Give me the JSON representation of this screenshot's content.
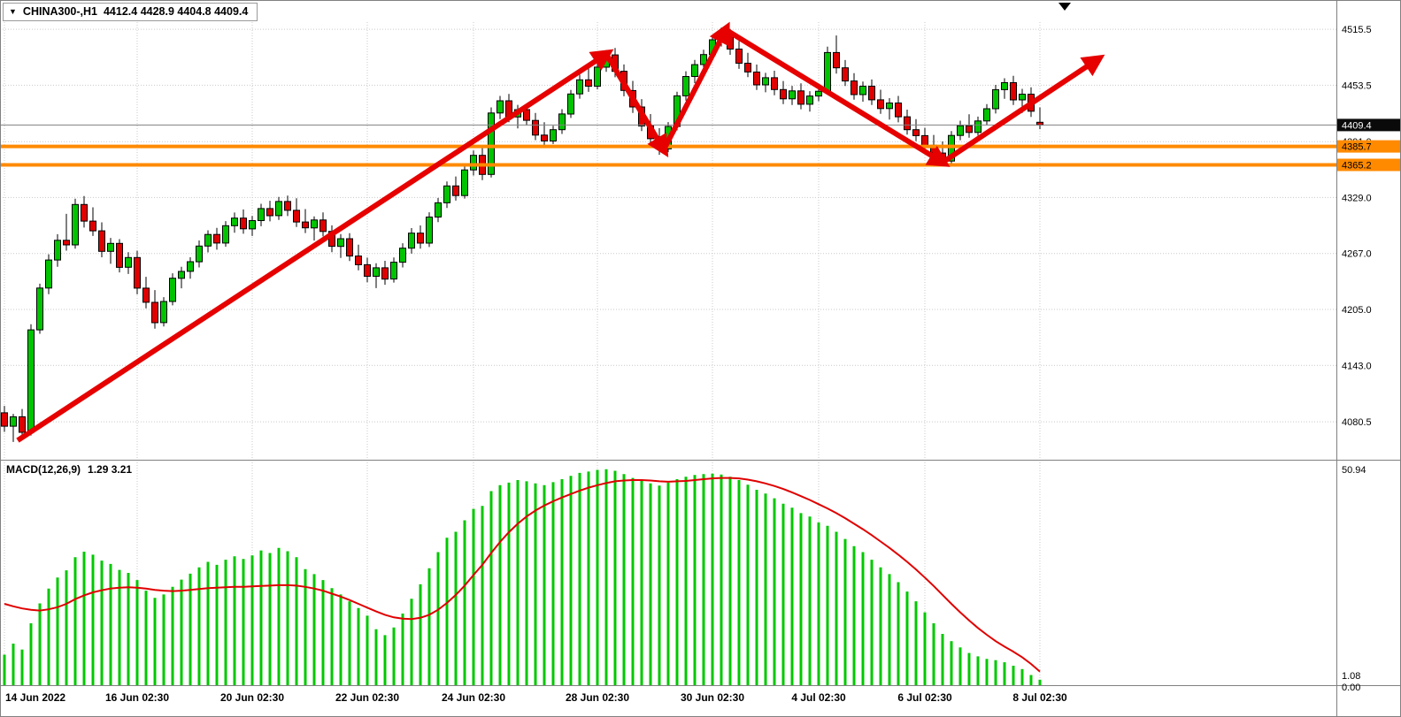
{
  "header": {
    "dropdown_icon": "▼",
    "symbol": "CHINA300-,H1",
    "ohlc": "4412.4 4428.9 4404.8 4409.4"
  },
  "macd": {
    "label": "MACD(12,26,9)",
    "values_text": "1.29 3.21"
  },
  "colors": {
    "background": "#ffffff",
    "grid": "#c9c9c9",
    "up": "#00c400",
    "down": "#e00000",
    "candle_border": "#000000",
    "wick": "#000000",
    "histogram": "#00c800",
    "signal_line": "#e00000",
    "support_line": "#ff8a00",
    "trend_arrow": "#e60000",
    "current_price_line": "#808080",
    "current_price_badge_bg": "#0a0a0a",
    "current_price_badge_fg": "#ffffff",
    "separator": "#808080"
  },
  "chart_data": [
    {
      "type": "candlestick",
      "title": "CHINA300-,H1",
      "timeframe": "H1",
      "ylim": [
        4038.5,
        4523.4
      ],
      "y_ticks": [
        4515.5,
        4453.5,
        4391.0,
        4329.0,
        4267.0,
        4205.0,
        4143.0,
        4080.5
      ],
      "x_tick_indices": [
        0,
        15,
        28,
        41,
        53,
        67,
        80,
        92,
        104,
        117
      ],
      "x_tick_labels": [
        "14 Jun 2022",
        "16 Jun 02:30",
        "20 Jun 02:30",
        "22 Jun 02:30",
        "24 Jun 02:30",
        "28 Jun 02:30",
        "30 Jun 02:30",
        "4 Jul 02:30",
        "6 Jul 02:30",
        "8 Jul 02:30"
      ],
      "current_price": 4409.4,
      "support_lines": [
        4385.7,
        4365.2
      ],
      "trend_arrows": [
        {
          "from": [
            1.5,
            4060.0
          ],
          "to": [
            68,
            4488.0
          ]
        },
        {
          "from": [
            68,
            4488.0
          ],
          "to": [
            74.5,
            4382.0
          ]
        },
        {
          "from": [
            74.5,
            4382.0
          ],
          "to": [
            81.5,
            4515.0
          ]
        },
        {
          "from": [
            81.5,
            4515.0
          ],
          "to": [
            106,
            4368.0
          ]
        },
        {
          "from": [
            106,
            4368.0
          ],
          "to": [
            123.5,
            4482.0
          ]
        }
      ],
      "ohlc": [
        [
          4090.5,
          4098.2,
          4069.4,
          4075.6
        ],
        [
          4075.6,
          4089.3,
          4058.2,
          4086.1
        ],
        [
          4086.1,
          4094.7,
          4061.5,
          4068.9
        ],
        [
          4068.9,
          4188.6,
          4065.3,
          4182.4
        ],
        [
          4182.4,
          4233.5,
          4178.1,
          4228.7
        ],
        [
          4228.7,
          4266.2,
          4221.9,
          4259.8
        ],
        [
          4259.8,
          4288.4,
          4252.3,
          4281.6
        ],
        [
          4281.6,
          4310.9,
          4270.2,
          4276.5
        ],
        [
          4276.5,
          4327.8,
          4272.4,
          4321.3
        ],
        [
          4321.3,
          4330.6,
          4295.7,
          4302.9
        ],
        [
          4302.9,
          4318.2,
          4286.4,
          4292.1
        ],
        [
          4292.1,
          4301.5,
          4262.8,
          4269.4
        ],
        [
          4269.4,
          4284.3,
          4255.6,
          4278.2
        ],
        [
          4278.2,
          4282.9,
          4246.1,
          4251.7
        ],
        [
          4251.7,
          4268.4,
          4244.3,
          4262.5
        ],
        [
          4262.5,
          4270.1,
          4221.8,
          4228.6
        ],
        [
          4228.6,
          4241.2,
          4206.3,
          4212.9
        ],
        [
          4212.9,
          4226.5,
          4183.7,
          4190.4
        ],
        [
          4190.4,
          4218.6,
          4186.2,
          4213.8
        ],
        [
          4213.8,
          4245.1,
          4209.5,
          4239.6
        ],
        [
          4239.6,
          4252.3,
          4228.4,
          4247.2
        ],
        [
          4247.2,
          4262.8,
          4239.1,
          4257.9
        ],
        [
          4257.9,
          4281.4,
          4251.6,
          4275.3
        ],
        [
          4275.3,
          4292.7,
          4268.2,
          4288.1
        ],
        [
          4288.1,
          4295.4,
          4271.3,
          4278.6
        ],
        [
          4278.6,
          4302.9,
          4274.5,
          4297.8
        ],
        [
          4297.8,
          4312.4,
          4290.1,
          4306.2
        ],
        [
          4306.2,
          4315.8,
          4288.9,
          4294.3
        ],
        [
          4294.3,
          4308.6,
          4286.4,
          4303.5
        ],
        [
          4303.5,
          4322.1,
          4297.2,
          4316.8
        ],
        [
          4316.8,
          4325.4,
          4302.6,
          4308.9
        ],
        [
          4308.9,
          4329.7,
          4304.2,
          4324.6
        ],
        [
          4324.6,
          4331.2,
          4308.5,
          4314.8
        ],
        [
          4314.8,
          4328.3,
          4296.4,
          4301.9
        ],
        [
          4301.9,
          4316.2,
          4289.7,
          4295.4
        ],
        [
          4295.4,
          4308.1,
          4281.3,
          4304.2
        ],
        [
          4304.2,
          4312.6,
          4285.9,
          4291.5
        ],
        [
          4291.5,
          4298.2,
          4268.4,
          4274.9
        ],
        [
          4274.9,
          4288.6,
          4262.1,
          4283.4
        ],
        [
          4283.4,
          4289.5,
          4258.7,
          4264.2
        ],
        [
          4264.2,
          4276.8,
          4248.3,
          4254.6
        ],
        [
          4254.6,
          4262.4,
          4235.1,
          4241.8
        ],
        [
          4241.8,
          4256.3,
          4228.6,
          4251.2
        ],
        [
          4251.2,
          4258.9,
          4232.4,
          4238.7
        ],
        [
          4238.7,
          4262.5,
          4234.8,
          4257.3
        ],
        [
          4257.3,
          4278.4,
          4251.6,
          4272.9
        ],
        [
          4272.9,
          4295.2,
          4266.8,
          4289.6
        ],
        [
          4289.6,
          4298.1,
          4272.3,
          4278.5
        ],
        [
          4278.5,
          4312.7,
          4274.2,
          4307.4
        ],
        [
          4307.4,
          4328.6,
          4301.8,
          4323.2
        ],
        [
          4323.2,
          4346.8,
          4317.5,
          4341.9
        ],
        [
          4341.9,
          4352.4,
          4325.6,
          4331.2
        ],
        [
          4331.2,
          4364.8,
          4327.9,
          4359.6
        ],
        [
          4359.6,
          4381.2,
          4353.4,
          4375.8
        ],
        [
          4375.8,
          4386.5,
          4348.2,
          4354.6
        ],
        [
          4354.6,
          4428.9,
          4351.3,
          4422.7
        ],
        [
          4422.7,
          4441.6,
          4415.8,
          4436.2
        ],
        [
          4436.2,
          4443.8,
          4412.5,
          4418.3
        ],
        [
          4418.3,
          4431.7,
          4405.6,
          4426.4
        ],
        [
          4426.4,
          4433.2,
          4408.9,
          4414.5
        ],
        [
          4414.5,
          4422.8,
          4392.6,
          4398.2
        ],
        [
          4398.2,
          4412.4,
          4386.1,
          4391.7
        ],
        [
          4391.7,
          4408.6,
          4388.3,
          4404.2
        ],
        [
          4404.2,
          4426.9,
          4399.5,
          4421.6
        ],
        [
          4421.6,
          4448.3,
          4417.2,
          4443.8
        ],
        [
          4443.8,
          4465.2,
          4438.6,
          4459.4
        ],
        [
          4459.4,
          4472.8,
          4446.1,
          4452.3
        ],
        [
          4452.3,
          4478.6,
          4448.9,
          4473.5
        ],
        [
          4473.5,
          4492.4,
          4468.2,
          4487.1
        ],
        [
          4487.1,
          4494.8,
          4462.3,
          4468.9
        ],
        [
          4468.9,
          4476.5,
          4441.2,
          4447.6
        ],
        [
          4447.6,
          4458.3,
          4422.8,
          4429.4
        ],
        [
          4429.4,
          4438.1,
          4402.6,
          4408.3
        ],
        [
          4408.3,
          4421.5,
          4388.7,
          4394.2
        ],
        [
          4394.2,
          4405.8,
          4376.4,
          4382.9
        ],
        [
          4382.9,
          4412.6,
          4379.3,
          4407.8
        ],
        [
          4407.8,
          4446.2,
          4403.5,
          4441.7
        ],
        [
          4441.7,
          4468.9,
          4436.4,
          4463.2
        ],
        [
          4463.2,
          4481.6,
          4455.8,
          4476.3
        ],
        [
          4476.3,
          4492.7,
          4469.1,
          4487.4
        ],
        [
          4487.4,
          4509.2,
          4482.6,
          4503.8
        ],
        [
          4503.8,
          4517.3,
          4496.4,
          4512.6
        ],
        [
          4512.6,
          4515.8,
          4487.2,
          4493.5
        ],
        [
          4493.5,
          4502.4,
          4471.6,
          4477.8
        ],
        [
          4477.8,
          4489.3,
          4462.5,
          4468.1
        ],
        [
          4468.1,
          4476.4,
          4448.2,
          4453.9
        ],
        [
          4453.9,
          4467.2,
          4445.6,
          4461.8
        ],
        [
          4461.8,
          4469.5,
          4442.3,
          4448.7
        ],
        [
          4448.7,
          4458.2,
          4432.6,
          4438.4
        ],
        [
          4438.4,
          4452.8,
          4431.5,
          4447.2
        ],
        [
          4447.2,
          4455.6,
          4426.8,
          4432.4
        ],
        [
          4432.4,
          4446.9,
          4424.3,
          4441.5
        ],
        [
          4441.5,
          4452.3,
          4435.7,
          4446.8
        ],
        [
          4446.8,
          4496.2,
          4443.5,
          4489.7
        ],
        [
          4489.7,
          4508.6,
          4466.3,
          4472.8
        ],
        [
          4472.8,
          4481.4,
          4452.6,
          4458.2
        ],
        [
          4458.2,
          4466.8,
          4437.4,
          4443.1
        ],
        [
          4443.1,
          4457.6,
          4435.2,
          4452.4
        ],
        [
          4452.4,
          4459.8,
          4431.6,
          4437.3
        ],
        [
          4437.3,
          4448.5,
          4421.8,
          4427.6
        ],
        [
          4427.6,
          4439.2,
          4415.4,
          4433.8
        ],
        [
          4433.8,
          4441.6,
          4412.3,
          4418.5
        ],
        [
          4418.5,
          4426.4,
          4398.7,
          4404.2
        ],
        [
          4404.2,
          4415.8,
          4391.5,
          4397.6
        ],
        [
          4397.6,
          4406.3,
          4381.2,
          4386.9
        ],
        [
          4386.9,
          4398.4,
          4372.6,
          4378.3
        ],
        [
          4378.3,
          4391.2,
          4363.8,
          4369.4
        ],
        [
          4369.4,
          4402.6,
          4366.1,
          4397.8
        ],
        [
          4397.8,
          4414.2,
          4392.5,
          4408.6
        ],
        [
          4408.6,
          4421.3,
          4395.4,
          4401.2
        ],
        [
          4401.2,
          4418.7,
          4397.6,
          4413.9
        ],
        [
          4413.9,
          4432.6,
          4409.2,
          4427.4
        ],
        [
          4427.4,
          4453.8,
          4422.1,
          4448.6
        ],
        [
          4448.6,
          4461.2,
          4438.5,
          4456.3
        ],
        [
          4456.3,
          4463.8,
          4431.6,
          4437.2
        ],
        [
          4437.2,
          4449.4,
          4422.8,
          4443.6
        ],
        [
          4443.6,
          4451.2,
          4418.3,
          4424.7
        ],
        [
          4412.4,
          4428.9,
          4404.8,
          4409.4
        ]
      ]
    },
    {
      "type": "macd",
      "label": "MACD(12,26,9)",
      "main_value": 1.29,
      "signal_value": 3.21,
      "ylim": [
        0,
        53.2
      ],
      "y_ticks": [
        50.94,
        1.08,
        0.0
      ],
      "histogram": [
        7.2,
        9.8,
        8.4,
        14.6,
        19.3,
        22.8,
        25.4,
        27.1,
        30.2,
        31.5,
        30.8,
        29.4,
        28.6,
        27.2,
        26.5,
        24.8,
        22.3,
        20.6,
        21.4,
        23.2,
        24.9,
        26.3,
        27.8,
        29.1,
        28.4,
        29.6,
        30.4,
        29.8,
        30.6,
        31.8,
        31.2,
        32.4,
        31.6,
        30.2,
        27.4,
        26.2,
        24.8,
        22.9,
        21.4,
        19.8,
        18.2,
        16.4,
        13.2,
        11.8,
        13.6,
        16.9,
        20.4,
        23.8,
        27.6,
        31.4,
        34.8,
        36.2,
        38.9,
        41.6,
        42.3,
        45.8,
        47.2,
        47.8,
        48.4,
        48.1,
        47.6,
        47.2,
        47.9,
        48.6,
        49.4,
        50.1,
        50.4,
        50.8,
        50.94,
        50.6,
        49.8,
        48.9,
        48.2,
        47.6,
        47.1,
        47.8,
        48.6,
        49.2,
        49.6,
        49.8,
        49.9,
        49.7,
        49.2,
        48.4,
        47.3,
        46.1,
        45.2,
        44.1,
        42.8,
        41.9,
        40.6,
        39.8,
        38.4,
        37.6,
        36.2,
        34.5,
        32.8,
        31.4,
        29.6,
        27.8,
        26.2,
        24.3,
        22.1,
        19.8,
        17.2,
        14.6,
        12.1,
        10.4,
        8.9,
        7.6,
        6.8,
        6.2,
        5.9,
        5.4,
        4.6,
        3.8,
        2.4,
        1.29
      ],
      "signal": [
        19.2,
        18.6,
        18.1,
        17.8,
        17.6,
        17.9,
        18.4,
        19.2,
        20.3,
        21.2,
        21.9,
        22.4,
        22.8,
        23.0,
        23.1,
        23.0,
        22.8,
        22.5,
        22.3,
        22.2,
        22.3,
        22.5,
        22.7,
        22.9,
        23.0,
        23.1,
        23.2,
        23.2,
        23.3,
        23.4,
        23.5,
        23.6,
        23.6,
        23.5,
        23.2,
        22.8,
        22.3,
        21.6,
        20.9,
        20.1,
        19.2,
        18.3,
        17.4,
        16.6,
        16.0,
        15.7,
        15.6,
        15.9,
        16.6,
        17.8,
        19.4,
        21.3,
        23.5,
        26.0,
        28.4,
        31.2,
        33.8,
        36.1,
        38.1,
        39.8,
        41.2,
        42.4,
        43.4,
        44.3,
        45.1,
        45.9,
        46.6,
        47.2,
        47.7,
        48.1,
        48.3,
        48.4,
        48.4,
        48.3,
        48.1,
        48.0,
        48.1,
        48.2,
        48.4,
        48.6,
        48.8,
        48.9,
        48.9,
        48.8,
        48.5,
        48.1,
        47.6,
        47.0,
        46.3,
        45.5,
        44.6,
        43.7,
        42.7,
        41.7,
        40.6,
        39.4,
        38.1,
        36.8,
        35.4,
        33.9,
        32.4,
        30.8,
        29.1,
        27.3,
        25.4,
        23.4,
        21.3,
        19.2,
        17.2,
        15.3,
        13.5,
        11.9,
        10.4,
        9.1,
        7.9,
        6.6,
        5.0,
        3.21
      ]
    }
  ]
}
